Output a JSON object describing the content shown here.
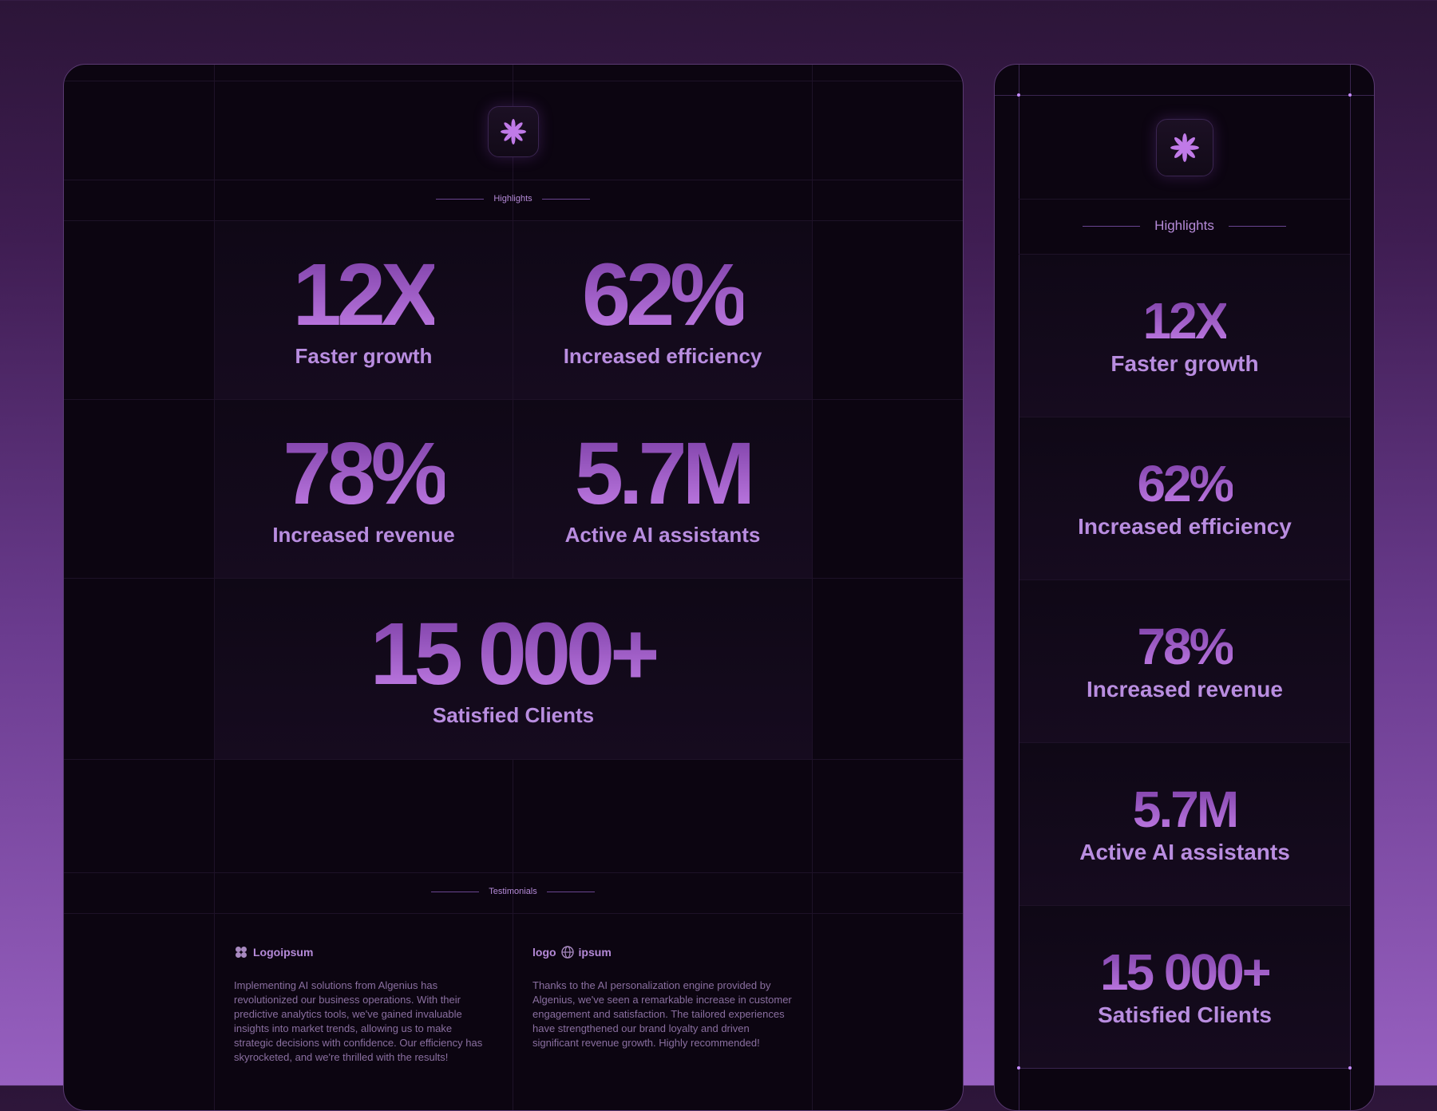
{
  "main": {
    "highlights_label": "Highlights",
    "stats": [
      {
        "value": "12X",
        "caption": "Faster growth"
      },
      {
        "value": "62%",
        "caption": "Increased efficiency"
      },
      {
        "value": "78%",
        "caption": "Increased revenue"
      },
      {
        "value": "5.7M",
        "caption": "Active AI assistants"
      },
      {
        "value": "15 000+",
        "caption": "Satisfied Clients"
      }
    ],
    "testimonials_label": "Testimonials",
    "testimonials": [
      {
        "brand": "Logoipsum",
        "brand_icon": "flower-logo-icon",
        "text": "Implementing AI solutions from Algenius has revolutionized our business operations. With their predictive analytics tools, we've gained invaluable insights into market trends, allowing us to make strategic decisions with confidence. Our efficiency has skyrocketed, and we're thrilled with the results!"
      },
      {
        "brand_prefix": "logo",
        "brand_suffix": "ipsum",
        "brand_icon": "globe-logo-icon",
        "text": "Thanks to the AI personalization engine provided by Algenius, we've seen a remarkable increase in customer engagement and satisfaction. The tailored experiences have strengthened our brand loyalty and driven significant revenue growth. Highly recommended!"
      }
    ]
  },
  "side": {
    "highlights_label": "Highlights",
    "stats": [
      {
        "value": "12X",
        "caption": "Faster growth"
      },
      {
        "value": "62%",
        "caption": "Increased efficiency"
      },
      {
        "value": "78%",
        "caption": "Increased revenue"
      },
      {
        "value": "5.7M",
        "caption": "Active AI assistants"
      },
      {
        "value": "15 000+",
        "caption": "Satisfied Clients"
      }
    ]
  },
  "icons": {
    "logo": "asterisk-flower-icon"
  },
  "colors": {
    "accent": "#b06ad6",
    "panel_bg": "#0c0511",
    "caption": "#b98de0"
  }
}
